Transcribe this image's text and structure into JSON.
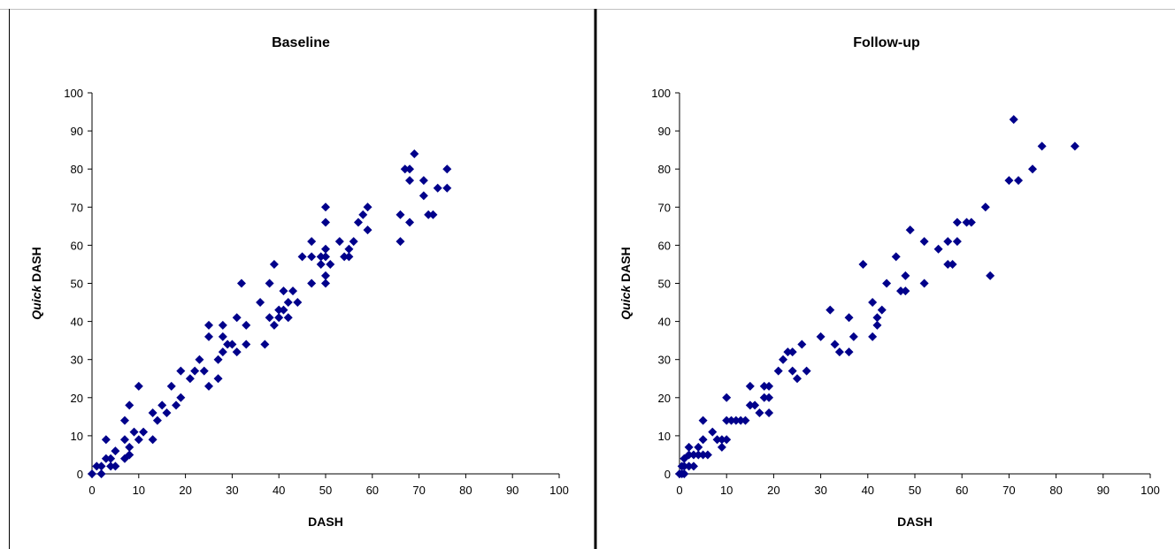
{
  "chart_data": [
    {
      "type": "scatter",
      "title": "Baseline",
      "xlabel": "DASH",
      "ylabel_italic": "Quick",
      "ylabel_rest": " DASH",
      "xlim": [
        0,
        100
      ],
      "ylim": [
        0,
        100
      ],
      "xticks": [
        "0",
        "10",
        "20",
        "30",
        "40",
        "50",
        "60",
        "70",
        "80",
        "90",
        "100"
      ],
      "yticks": [
        "0",
        "10",
        "20",
        "30",
        "40",
        "50",
        "60",
        "70",
        "80",
        "90",
        "100"
      ],
      "grid": false,
      "marker": "diamond",
      "color": "#00008B",
      "points": [
        [
          0,
          0
        ],
        [
          1,
          2
        ],
        [
          2,
          0
        ],
        [
          2,
          2
        ],
        [
          3,
          4
        ],
        [
          3,
          9
        ],
        [
          4,
          2
        ],
        [
          4,
          4
        ],
        [
          5,
          6
        ],
        [
          5,
          2
        ],
        [
          7,
          4
        ],
        [
          7,
          9
        ],
        [
          7,
          14
        ],
        [
          8,
          7
        ],
        [
          8,
          5
        ],
        [
          8,
          18
        ],
        [
          9,
          11
        ],
        [
          10,
          9
        ],
        [
          10,
          23
        ],
        [
          11,
          11
        ],
        [
          13,
          9
        ],
        [
          13,
          16
        ],
        [
          14,
          14
        ],
        [
          15,
          18
        ],
        [
          16,
          16
        ],
        [
          17,
          23
        ],
        [
          18,
          18
        ],
        [
          19,
          20
        ],
        [
          19,
          27
        ],
        [
          21,
          25
        ],
        [
          22,
          27
        ],
        [
          23,
          30
        ],
        [
          24,
          27
        ],
        [
          25,
          23
        ],
        [
          25,
          36
        ],
        [
          25,
          39
        ],
        [
          27,
          30
        ],
        [
          27,
          25
        ],
        [
          28,
          32
        ],
        [
          28,
          36
        ],
        [
          28,
          39
        ],
        [
          29,
          34
        ],
        [
          30,
          34
        ],
        [
          31,
          41
        ],
        [
          31,
          32
        ],
        [
          32,
          50
        ],
        [
          33,
          39
        ],
        [
          33,
          34
        ],
        [
          36,
          45
        ],
        [
          37,
          34
        ],
        [
          38,
          50
        ],
        [
          38,
          41
        ],
        [
          39,
          55
        ],
        [
          39,
          39
        ],
        [
          40,
          43
        ],
        [
          40,
          41
        ],
        [
          41,
          48
        ],
        [
          41,
          43
        ],
        [
          42,
          45
        ],
        [
          42,
          41
        ],
        [
          43,
          48
        ],
        [
          44,
          45
        ],
        [
          45,
          57
        ],
        [
          47,
          50
        ],
        [
          47,
          57
        ],
        [
          47,
          61
        ],
        [
          49,
          57
        ],
        [
          49,
          55
        ],
        [
          50,
          50
        ],
        [
          50,
          52
        ],
        [
          50,
          57
        ],
        [
          50,
          59
        ],
        [
          50,
          66
        ],
        [
          50,
          70
        ],
        [
          51,
          55
        ],
        [
          53,
          61
        ],
        [
          54,
          57
        ],
        [
          55,
          57
        ],
        [
          55,
          59
        ],
        [
          56,
          61
        ],
        [
          57,
          66
        ],
        [
          58,
          68
        ],
        [
          59,
          64
        ],
        [
          59,
          70
        ],
        [
          66,
          61
        ],
        [
          66,
          68
        ],
        [
          67,
          80
        ],
        [
          68,
          80
        ],
        [
          68,
          66
        ],
        [
          68,
          77
        ],
        [
          69,
          84
        ],
        [
          71,
          73
        ],
        [
          71,
          77
        ],
        [
          72,
          68
        ],
        [
          73,
          68
        ],
        [
          74,
          75
        ],
        [
          76,
          75
        ],
        [
          76,
          80
        ]
      ]
    },
    {
      "type": "scatter",
      "title": "Follow-up",
      "xlabel": "DASH",
      "ylabel_italic": "Quick",
      "ylabel_rest": " DASH",
      "xlim": [
        0,
        100
      ],
      "ylim": [
        0,
        100
      ],
      "xticks": [
        "0",
        "10",
        "20",
        "30",
        "40",
        "50",
        "60",
        "70",
        "80",
        "90",
        "100"
      ],
      "yticks": [
        "0",
        "10",
        "20",
        "30",
        "40",
        "50",
        "60",
        "70",
        "80",
        "90",
        "100"
      ],
      "grid": false,
      "marker": "diamond",
      "color": "#00008B",
      "points": [
        [
          0,
          0
        ],
        [
          0.5,
          0
        ],
        [
          0.5,
          2
        ],
        [
          1,
          0
        ],
        [
          1,
          2
        ],
        [
          1,
          4
        ],
        [
          2,
          2
        ],
        [
          2,
          5
        ],
        [
          2,
          7
        ],
        [
          3,
          2
        ],
        [
          3,
          5
        ],
        [
          4,
          7
        ],
        [
          4,
          5
        ],
        [
          5,
          5
        ],
        [
          5,
          9
        ],
        [
          5,
          14
        ],
        [
          6,
          5
        ],
        [
          7,
          11
        ],
        [
          8,
          9
        ],
        [
          9,
          7
        ],
        [
          9,
          9
        ],
        [
          10,
          9
        ],
        [
          10,
          14
        ],
        [
          10,
          20
        ],
        [
          11,
          14
        ],
        [
          12,
          14
        ],
        [
          13,
          14
        ],
        [
          14,
          14
        ],
        [
          15,
          18
        ],
        [
          15,
          23
        ],
        [
          16,
          18
        ],
        [
          17,
          16
        ],
        [
          18,
          20
        ],
        [
          18,
          23
        ],
        [
          19,
          20
        ],
        [
          19,
          23
        ],
        [
          19,
          16
        ],
        [
          21,
          27
        ],
        [
          22,
          30
        ],
        [
          23,
          32
        ],
        [
          24,
          27
        ],
        [
          24,
          32
        ],
        [
          25,
          25
        ],
        [
          26,
          34
        ],
        [
          27,
          27
        ],
        [
          30,
          36
        ],
        [
          32,
          43
        ],
        [
          33,
          34
        ],
        [
          34,
          32
        ],
        [
          36,
          32
        ],
        [
          36,
          41
        ],
        [
          37,
          36
        ],
        [
          39,
          55
        ],
        [
          41,
          36
        ],
        [
          41,
          45
        ],
        [
          42,
          39
        ],
        [
          42,
          41
        ],
        [
          43,
          43
        ],
        [
          44,
          50
        ],
        [
          46,
          57
        ],
        [
          47,
          48
        ],
        [
          48,
          52
        ],
        [
          48,
          48
        ],
        [
          49,
          64
        ],
        [
          52,
          50
        ],
        [
          52,
          61
        ],
        [
          55,
          59
        ],
        [
          57,
          61
        ],
        [
          57,
          55
        ],
        [
          58,
          55
        ],
        [
          59,
          61
        ],
        [
          59,
          66
        ],
        [
          61,
          66
        ],
        [
          62,
          66
        ],
        [
          65,
          70
        ],
        [
          66,
          52
        ],
        [
          70,
          77
        ],
        [
          71,
          93
        ],
        [
          72,
          77
        ],
        [
          75,
          80
        ],
        [
          77,
          86
        ],
        [
          84,
          86
        ]
      ]
    }
  ]
}
